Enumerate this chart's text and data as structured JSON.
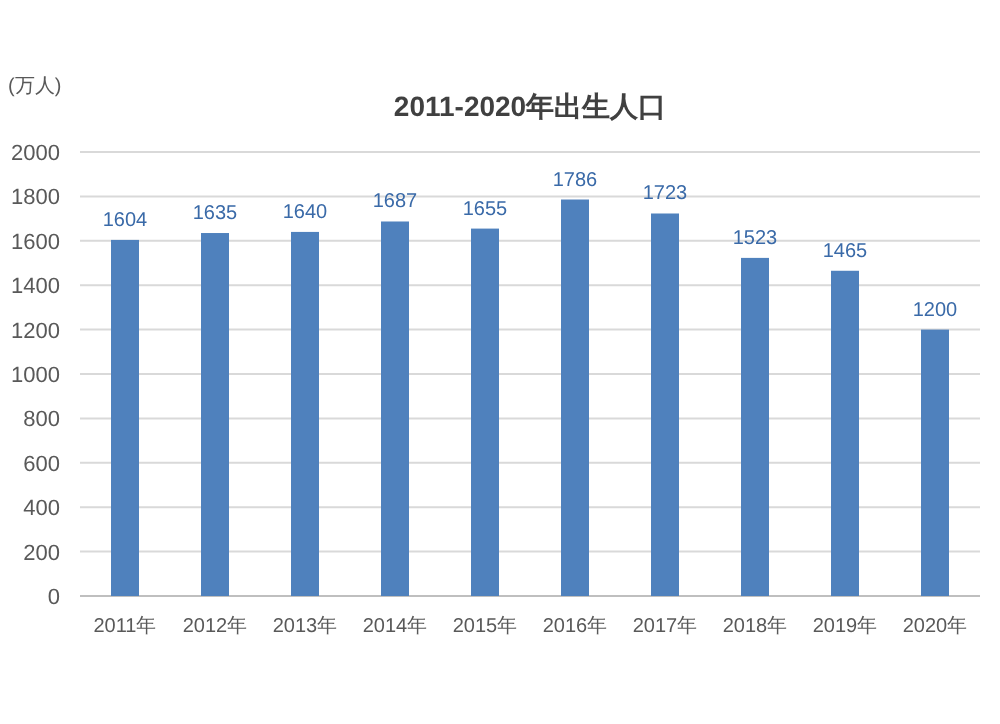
{
  "chart_data": {
    "type": "bar",
    "title": "2011-2020年出生人口",
    "ylabel": "(万人)",
    "categories": [
      "2011年",
      "2012年",
      "2013年",
      "2014年",
      "2015年",
      "2016年",
      "2017年",
      "2018年",
      "2019年",
      "2020年"
    ],
    "series": [
      {
        "color": "#4f81bd",
        "values": [
          1604,
          1635,
          1640,
          1687,
          1655,
          1786,
          1723,
          1523,
          1465,
          1200
        ]
      }
    ],
    "ylim": [
      0,
      2000
    ],
    "yticks": [
      0,
      200,
      400,
      600,
      800,
      1000,
      1200,
      1400,
      1600,
      1800,
      2000
    ],
    "grid": "y",
    "data_labels": true
  }
}
